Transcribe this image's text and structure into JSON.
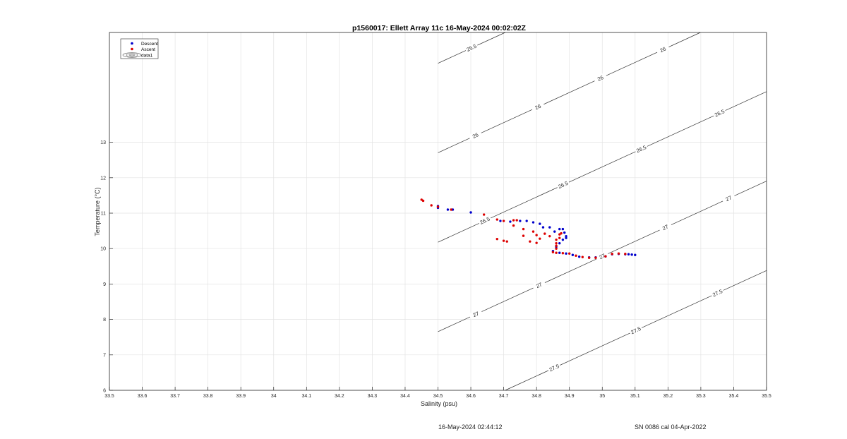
{
  "chart_data": {
    "type": "scatter",
    "title": "p1560017: Ellett Array 11c 16-May-2024 00:02:02Z",
    "xlabel": "Salinity (psu)",
    "ylabel": "Temperature (°C)",
    "xlim": [
      33.5,
      35.5
    ],
    "ylim": [
      6,
      16.1
    ],
    "x_ticks": [
      33.5,
      33.6,
      33.7,
      33.8,
      33.9,
      34,
      34.1,
      34.2,
      34.3,
      34.4,
      34.5,
      34.6,
      34.7,
      34.8,
      34.9,
      35,
      35.1,
      35.2,
      35.3,
      35.4,
      35.5
    ],
    "y_ticks": [
      6,
      7,
      8,
      9,
      10,
      11,
      12,
      13
    ],
    "grid": true,
    "legend_position": "top-left",
    "series": [
      {
        "name": "Descent",
        "color": "#0000cc",
        "marker": "dot",
        "points": [
          [
            34.5,
            11.2
          ],
          [
            34.5,
            11.15
          ],
          [
            34.53,
            11.1
          ],
          [
            34.545,
            11.1
          ],
          [
            34.6,
            11.02
          ],
          [
            34.69,
            10.78
          ],
          [
            34.72,
            10.76
          ],
          [
            34.75,
            10.78
          ],
          [
            34.77,
            10.78
          ],
          [
            34.79,
            10.74
          ],
          [
            34.81,
            10.7
          ],
          [
            34.82,
            10.6
          ],
          [
            34.84,
            10.6
          ],
          [
            34.855,
            10.48
          ],
          [
            34.87,
            10.55
          ],
          [
            34.88,
            10.55
          ],
          [
            34.885,
            10.45
          ],
          [
            34.89,
            10.35
          ],
          [
            34.89,
            10.3
          ],
          [
            34.88,
            10.25
          ],
          [
            34.87,
            10.15
          ],
          [
            34.86,
            10.05
          ],
          [
            34.85,
            9.93
          ],
          [
            34.87,
            9.88
          ],
          [
            34.89,
            9.86
          ],
          [
            34.91,
            9.82
          ],
          [
            34.93,
            9.77
          ],
          [
            34.96,
            9.75
          ],
          [
            34.98,
            9.75
          ],
          [
            35.01,
            9.78
          ],
          [
            35.03,
            9.84
          ],
          [
            35.05,
            9.85
          ],
          [
            35.07,
            9.84
          ],
          [
            35.08,
            9.84
          ],
          [
            35.09,
            9.83
          ],
          [
            35.1,
            9.82
          ]
        ]
      },
      {
        "name": "Ascent",
        "color": "#dd0000",
        "marker": "dot",
        "points": [
          [
            34.45,
            11.38
          ],
          [
            34.455,
            11.35
          ],
          [
            34.48,
            11.22
          ],
          [
            34.5,
            11.18
          ],
          [
            34.54,
            11.1
          ],
          [
            34.64,
            10.96
          ],
          [
            34.68,
            10.82
          ],
          [
            34.7,
            10.78
          ],
          [
            34.73,
            10.8
          ],
          [
            34.74,
            10.8
          ],
          [
            34.73,
            10.65
          ],
          [
            34.76,
            10.55
          ],
          [
            34.79,
            10.48
          ],
          [
            34.8,
            10.38
          ],
          [
            34.825,
            10.42
          ],
          [
            34.84,
            10.35
          ],
          [
            34.68,
            10.27
          ],
          [
            34.7,
            10.22
          ],
          [
            34.71,
            10.2
          ],
          [
            34.76,
            10.36
          ],
          [
            34.78,
            10.2
          ],
          [
            34.8,
            10.16
          ],
          [
            34.81,
            10.28
          ],
          [
            34.86,
            10.25
          ],
          [
            34.86,
            10.15
          ],
          [
            34.87,
            10.4
          ],
          [
            34.875,
            10.43
          ],
          [
            34.87,
            10.3
          ],
          [
            34.86,
            10.08
          ],
          [
            34.86,
            10.0
          ],
          [
            34.85,
            9.9
          ],
          [
            34.86,
            9.88
          ],
          [
            34.88,
            9.87
          ],
          [
            34.9,
            9.86
          ],
          [
            34.92,
            9.8
          ],
          [
            34.94,
            9.76
          ],
          [
            34.96,
            9.74
          ],
          [
            34.98,
            9.74
          ],
          [
            35.01,
            9.78
          ],
          [
            35.03,
            9.85
          ],
          [
            35.05,
            9.86
          ],
          [
            35.07,
            9.85
          ]
        ]
      }
    ],
    "contour_series_name": "data1",
    "density_contours": [
      {
        "level": 25.5,
        "labels": [
          "25.5"
        ]
      },
      {
        "level": 26.0,
        "labels": [
          "26",
          "26",
          "26",
          "26"
        ]
      },
      {
        "level": 26.5,
        "labels": [
          "26.5",
          "26.5",
          "26.5",
          "26.5"
        ]
      },
      {
        "level": 27.0,
        "labels": [
          "27",
          "27",
          "27",
          "27",
          "27"
        ]
      },
      {
        "level": 27.5,
        "labels": [
          "27.5",
          "27.5",
          "27.5"
        ]
      }
    ]
  },
  "footer": {
    "timestamp": "16-May-2024 02:44:12",
    "calibration": "SN 0086 cal 04-Apr-2022"
  }
}
